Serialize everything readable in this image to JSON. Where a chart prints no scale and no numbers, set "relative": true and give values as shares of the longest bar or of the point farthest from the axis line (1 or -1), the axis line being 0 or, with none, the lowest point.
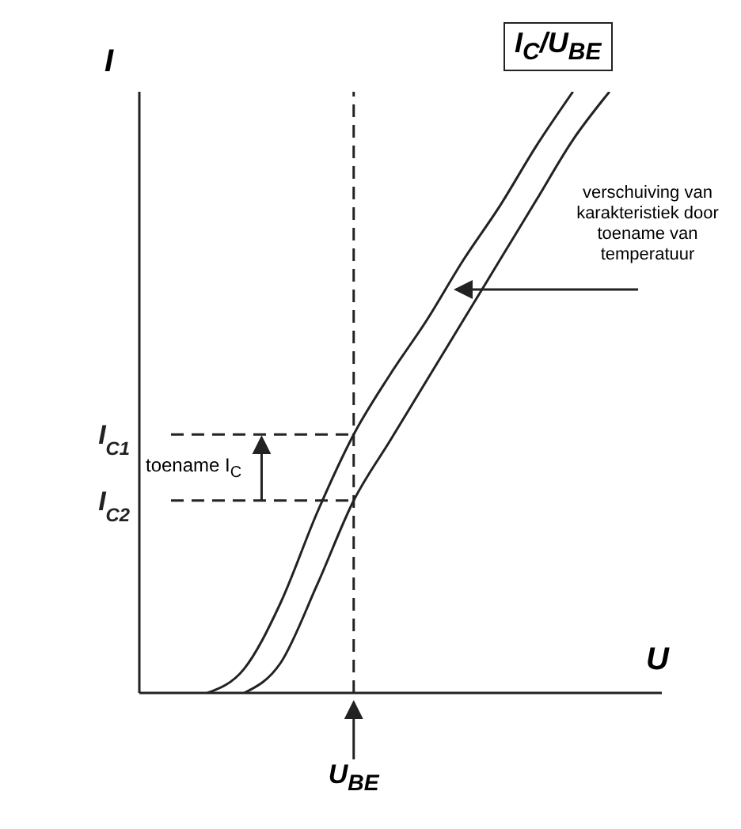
{
  "chart_data": {
    "type": "line",
    "title": "I$_{C}$/U$_{BE}$",
    "xlabel": "U",
    "ylabel": "I",
    "relative": true,
    "categories": [
      null,
      null,
      null,
      null,
      null,
      null,
      null,
      null,
      null,
      null,
      null,
      null,
      null,
      null
    ],
    "series": [
      {
        "color": "#222222",
        "values": [
          null,
          0,
          0.04,
          0.15,
          0.3,
          0.43,
          0.53,
          0.62,
          0.72,
          0.81,
          0.91,
          1.0,
          null,
          null
        ]
      },
      {
        "color": "#222222",
        "values": [
          null,
          null,
          0,
          0.05,
          0.18,
          0.32,
          0.42,
          0.52,
          0.62,
          0.72,
          0.82,
          0.92,
          1.0,
          null
        ]
      }
    ],
    "ref_lines": [
      {
        "axis": "y",
        "value": 0.43,
        "label": "I$_{C1}$",
        "line_style": "dashed",
        "color": "#222222"
      },
      {
        "axis": "y",
        "value": 0.32,
        "label": "I$_{C2}$",
        "line_style": "dashed",
        "color": "#222222"
      }
    ],
    "annotations": [
      "verschuiving van karakteristiek door toename van temperatuur",
      "toename I$_{C}$",
      "U$_{BE}$"
    ],
    "line_style": "solid"
  }
}
